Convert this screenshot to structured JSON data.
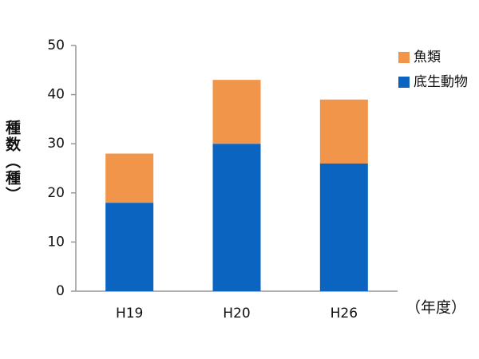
{
  "chart_data": {
    "type": "stacked-bar",
    "y_label": "種数（種）",
    "x_label": "（年度）",
    "categories": [
      "H19",
      "H20",
      "H26"
    ],
    "series": [
      {
        "name": "底生動物",
        "color": "#0a64c0",
        "values": [
          18,
          30,
          26
        ]
      },
      {
        "name": "魚類",
        "color": "#f0954a",
        "values": [
          10,
          13,
          13
        ]
      }
    ],
    "ylim": [
      0,
      50
    ],
    "yticks": [
      0,
      10,
      20,
      30,
      40,
      50
    ],
    "legend": "top-right"
  }
}
